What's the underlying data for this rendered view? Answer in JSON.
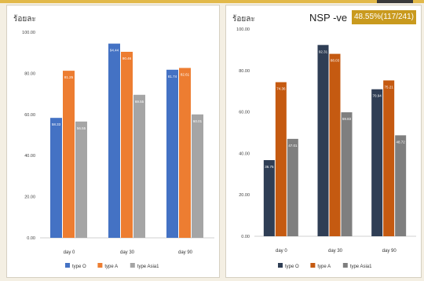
{
  "page": {
    "background": "#f4efe3",
    "accent": "#e2b94a"
  },
  "chart_data": [
    {
      "type": "bar",
      "title": "",
      "ylabel": "ร้อยละ",
      "xlabel": "",
      "categories": [
        "day 0",
        "day 30",
        "day 90"
      ],
      "ylim": [
        0,
        100
      ],
      "yticks": [
        "0.00",
        "20.00",
        "40.00",
        "60.00",
        "80.00",
        "100.00"
      ],
      "grid": false,
      "legend": "bottom",
      "series": [
        {
          "name": "type O",
          "color": "#4472c4",
          "values": [
            58.33,
            94.44,
            81.74
          ]
        },
        {
          "name": "type A",
          "color": "#ed7d31",
          "values": [
            81.25,
            90.46,
            82.61
          ]
        },
        {
          "name": "type Asia1",
          "color": "#a5a5a5",
          "values": [
            56.55,
            69.55,
            60.01
          ]
        }
      ]
    },
    {
      "type": "bar",
      "title": "NSP -ve",
      "badge": "48.55%(117/241)",
      "ylabel": "ร้อยละ",
      "xlabel": "",
      "categories": [
        "day 0",
        "day 30",
        "day 90"
      ],
      "ylim": [
        0,
        100
      ],
      "yticks": [
        "0.00",
        "20.00",
        "40.00",
        "60.00",
        "80.00",
        "100.00"
      ],
      "grid": false,
      "legend": "bottom",
      "series": [
        {
          "name": "type O",
          "color": "#2f3e55",
          "values": [
            36.75,
            92.31,
            70.94
          ]
        },
        {
          "name": "type A",
          "color": "#c55a11",
          "values": [
            74.36,
            88.03,
            75.21
          ]
        },
        {
          "name": "type Asia1",
          "color": "#7f7f7f",
          "values": [
            47.01,
            59.83,
            48.72
          ]
        }
      ]
    }
  ]
}
